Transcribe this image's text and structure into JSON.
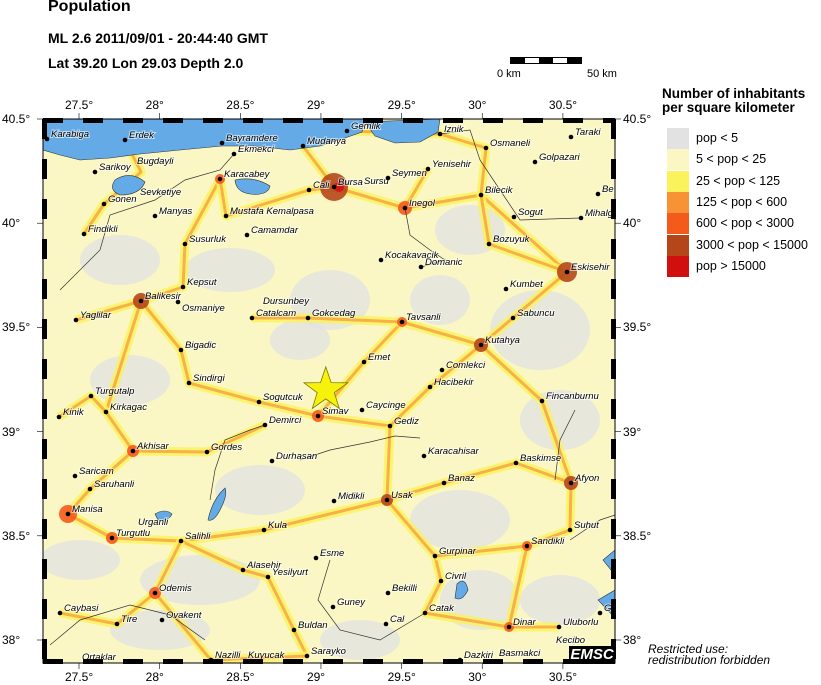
{
  "header": {
    "title": "Population",
    "event": "ML 2.6  2011/09/01 - 20:44:40 GMT",
    "location": "Lat 39.20    Lon  29.03    Depth  2.0"
  },
  "scale_bar": {
    "start_label": "0 km",
    "end_label": "50 km"
  },
  "axes": {
    "lon_ticks": [
      "27.5°",
      "28°",
      "28.5°",
      "29°",
      "29.5°",
      "30°",
      "30.5°"
    ],
    "lat_ticks": [
      "40.5°",
      "40°",
      "39.5°",
      "39°",
      "38.5°",
      "38°"
    ]
  },
  "epicenter": {
    "lat": 39.2,
    "lon": 29.03,
    "marker": "star-icon",
    "color": "#f7f20c"
  },
  "legend": {
    "title_line1": "Number of inhabitants",
    "title_line2": "per square kilometer",
    "classes": [
      {
        "label": "pop < 5",
        "color": "#e2e2e2"
      },
      {
        "label": "5 < pop < 25",
        "color": "#fbf7c4"
      },
      {
        "label": "25 < pop < 125",
        "color": "#fbf35c"
      },
      {
        "label": "125 < pop < 600",
        "color": "#f89335"
      },
      {
        "label": "600 < pop < 3000",
        "color": "#f45a1c"
      },
      {
        "label": "3000 < pop < 15000",
        "color": "#b5461a"
      },
      {
        "label": "pop > 15000",
        "color": "#d20f0f"
      }
    ]
  },
  "cities": [
    "Karabiga",
    "Erdek",
    "Bayramdere",
    "Ekmekci",
    "Mudanya",
    "Gemlik",
    "Iznik",
    "Osmaneli",
    "Taraki",
    "Golpazari",
    "Be",
    "Mihalg",
    "Sarikoy",
    "Bugdayli",
    "Sevketiye",
    "Gonen",
    "Manyas",
    "Karacabey",
    "Cali",
    "Bursa",
    "Sursu",
    "Seymen",
    "Yenisehir",
    "Inegol",
    "Bilecik",
    "Sogut",
    "Bozuyuk",
    "Eskisehir",
    "Kumbet",
    "Kocakavacik",
    "Domanic",
    "Mustafa Kemalpasa",
    "Camamdar",
    "Findikli",
    "Susurluk",
    "Kepsut",
    "Balikesir",
    "Osmaniye",
    "Dursunbey",
    "Catalcam",
    "Gokcedag",
    "Yaglilar",
    "Tavsanli",
    "Sabuncu",
    "Kutahya",
    "Emet",
    "Comlekci",
    "Hacibekir",
    "Bigadic",
    "Sindirgi",
    "Sogutcuk",
    "Simav",
    "Caycinge",
    "Gediz",
    "Fincanburnu",
    "Turgutalp",
    "Kirkagac",
    "Kinik",
    "Demirci",
    "Akhisar",
    "Gordes",
    "Durhasan",
    "Karacahisar",
    "Baskimse",
    "Banaz",
    "Afyon",
    "Saricam",
    "Saruhanli",
    "Midikli",
    "Usak",
    "Manisa",
    "Kula",
    "Turgutlu",
    "Urganli",
    "Salihli",
    "Suhut",
    "Sandikli",
    "Esme",
    "Gurpinar",
    "Alasehir",
    "Yesilyurt",
    "Civril",
    "Bekilli",
    "Odemis",
    "Caybasi",
    "Tire",
    "Ovakent",
    "Guney",
    "Catak",
    "Buldan",
    "Cal",
    "Dinar",
    "Uluborlu",
    "Gs",
    "Ortaklar",
    "Nazilli",
    "Kuyucak",
    "Sarayko",
    "Dazkiri",
    "Basmakci",
    "Kecibo"
  ],
  "logo": "EMSC",
  "notice_line1": "Restricted use:",
  "notice_line2": "redistribution forbidden"
}
